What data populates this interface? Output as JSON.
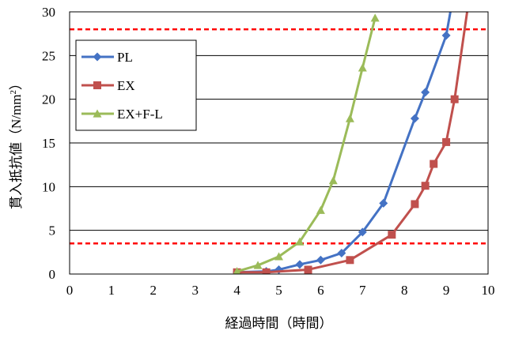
{
  "chart_data": {
    "type": "line",
    "xlabel": "経過時間（時間）",
    "ylabel_main": "貫入抵抗値（N/mm",
    "ylabel_sup": "2",
    "ylabel_end": "）",
    "xlim": [
      0,
      10
    ],
    "ylim": [
      0,
      30
    ],
    "x_ticks": [
      0,
      1,
      2,
      3,
      4,
      5,
      6,
      7,
      8,
      9,
      10
    ],
    "y_ticks": [
      0,
      5,
      10,
      15,
      20,
      25,
      30
    ],
    "grid": "horizontal",
    "legend_position": "top-left",
    "reference_lines": [
      {
        "y": 3.5,
        "color": "#ff0000",
        "style": "dashed"
      },
      {
        "y": 28,
        "color": "#ff0000",
        "style": "dashed"
      }
    ],
    "series": [
      {
        "name": "PL",
        "color": "#4472c4",
        "marker": "diamond",
        "x": [
          4.0,
          4.7,
          5.0,
          5.5,
          6.0,
          6.5,
          7.0,
          7.5,
          8.25,
          8.5,
          9.0,
          9.1
        ],
        "y": [
          0.2,
          0.3,
          0.5,
          1.1,
          1.6,
          2.4,
          4.8,
          8.1,
          17.8,
          20.8,
          27.3,
          30
        ]
      },
      {
        "name": "EX",
        "color": "#c0504d",
        "marker": "square",
        "x": [
          4.0,
          4.7,
          5.7,
          6.7,
          7.7,
          8.25,
          8.5,
          8.7,
          9.0,
          9.2,
          9.5
        ],
        "y": [
          0.2,
          0.2,
          0.5,
          1.6,
          4.5,
          8.0,
          10.1,
          12.6,
          15.1,
          20.0,
          30
        ]
      },
      {
        "name": "EX+F-L",
        "color": "#9bbb59",
        "marker": "triangle",
        "x": [
          4.0,
          4.5,
          5.0,
          5.5,
          6.0,
          6.3,
          6.7,
          7.0,
          7.3
        ],
        "y": [
          0.3,
          1.0,
          2.0,
          3.7,
          7.3,
          10.7,
          17.8,
          23.6,
          29.3
        ]
      }
    ]
  }
}
